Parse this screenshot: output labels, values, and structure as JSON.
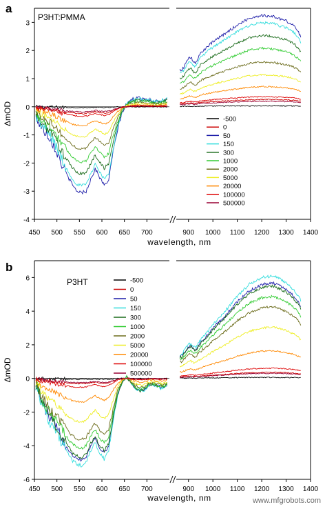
{
  "watermark": "www.mfgrobots.com",
  "chart_data": [
    {
      "panel_label": "a",
      "type": "line",
      "title": "P3HT:PMMA",
      "xlabel": "wavelength, nm",
      "ylabel": "ΔmOD",
      "xlim_left": [
        450,
        750
      ],
      "xlim_right": [
        850,
        1400
      ],
      "x_ticks_left": [
        "450",
        "500",
        "550",
        "600",
        "650",
        "700"
      ],
      "x_ticks_right": [
        "900",
        "1000",
        "1100",
        "1200",
        "1300",
        "1400"
      ],
      "ylim": [
        -4,
        3.5
      ],
      "y_ticks": [
        "-4",
        "-3",
        "-2",
        "-1",
        "0",
        "1",
        "2",
        "3"
      ],
      "legend_placement": "lower-right",
      "grid": false,
      "series": [
        {
          "name": "-500",
          "color": "#000000",
          "scale": 0.01
        },
        {
          "name": "0",
          "color": "#cc0000",
          "scale": 0.08
        },
        {
          "name": "50",
          "color": "#1c1ca8",
          "scale": 1.0
        },
        {
          "name": "150",
          "color": "#33dddd",
          "scale": 0.92
        },
        {
          "name": "300",
          "color": "#1a6b1a",
          "scale": 0.78
        },
        {
          "name": "1000",
          "color": "#33cc33",
          "scale": 0.64
        },
        {
          "name": "2000",
          "color": "#6b6b1a",
          "scale": 0.49
        },
        {
          "name": "5000",
          "color": "#eeee22",
          "scale": 0.35
        },
        {
          "name": "20000",
          "color": "#ff8800",
          "scale": 0.22
        },
        {
          "name": "100000",
          "color": "#dd0000",
          "scale": 0.11
        },
        {
          "name": "500000",
          "color": "#990033",
          "scale": 0.06
        }
      ],
      "left_profile": {
        "x": [
          455,
          465,
          475,
          485,
          495,
          505,
          515,
          525,
          535,
          545,
          555,
          565,
          575,
          585,
          595,
          605,
          615,
          625,
          635,
          645,
          655,
          665,
          675,
          685,
          695,
          705,
          715,
          725,
          735,
          745
        ],
        "y": [
          -0.4,
          -0.7,
          -0.9,
          -1.1,
          -1.4,
          -1.8,
          -2.2,
          -2.5,
          -2.8,
          -3.0,
          -3.05,
          -3.0,
          -2.6,
          -2.2,
          -2.5,
          -2.8,
          -2.6,
          -1.6,
          -0.8,
          -0.2,
          0.1,
          0.25,
          0.3,
          0.3,
          0.3,
          0.25,
          0.2,
          0.2,
          0.25,
          0.3
        ]
      },
      "right_profile": {
        "x": [
          870,
          880,
          890,
          900,
          910,
          920,
          930,
          940,
          950,
          960,
          980,
          1000,
          1050,
          1100,
          1150,
          1200,
          1250,
          1300,
          1330,
          1350,
          1360
        ],
        "y": [
          1.3,
          1.4,
          1.55,
          1.7,
          1.75,
          1.6,
          1.55,
          1.75,
          1.9,
          2.0,
          2.15,
          2.3,
          2.6,
          2.9,
          3.15,
          3.25,
          3.2,
          3.05,
          2.9,
          2.65,
          2.5
        ]
      }
    },
    {
      "panel_label": "b",
      "type": "line",
      "title": "P3HT",
      "xlabel": "wavelength, nm",
      "ylabel": "ΔmOD",
      "xlim_left": [
        450,
        750
      ],
      "xlim_right": [
        850,
        1400
      ],
      "x_ticks_left": [
        "450",
        "500",
        "550",
        "600",
        "650",
        "700"
      ],
      "x_ticks_right": [
        "900",
        "1000",
        "1100",
        "1200",
        "1300",
        "1400"
      ],
      "ylim": [
        -6,
        7
      ],
      "y_ticks": [
        "-6",
        "-4",
        "-2",
        "0",
        "2",
        "4",
        "6"
      ],
      "legend_placement": "top-left",
      "grid": false,
      "series": [
        {
          "name": "-500",
          "color": "#000000",
          "scale": 0.01
        },
        {
          "name": "0",
          "color": "#cc0000",
          "scale": 0.06
        },
        {
          "name": "50",
          "color": "#1c1ca8",
          "scale": 0.93
        },
        {
          "name": "150",
          "color": "#33dddd",
          "scale": 1.0
        },
        {
          "name": "300",
          "color": "#1a6b1a",
          "scale": 0.9
        },
        {
          "name": "1000",
          "color": "#33cc33",
          "scale": 0.8
        },
        {
          "name": "2000",
          "color": "#6b6b1a",
          "scale": 0.7
        },
        {
          "name": "5000",
          "color": "#eeee22",
          "scale": 0.5
        },
        {
          "name": "20000",
          "color": "#ff8800",
          "scale": 0.27
        },
        {
          "name": "100000",
          "color": "#dd0000",
          "scale": 0.1
        },
        {
          "name": "500000",
          "color": "#990033",
          "scale": 0.05
        }
      ],
      "left_profile": {
        "x": [
          455,
          465,
          475,
          485,
          495,
          505,
          515,
          525,
          535,
          545,
          555,
          565,
          575,
          585,
          595,
          605,
          615,
          625,
          635,
          645,
          655,
          665,
          675,
          685,
          695,
          705,
          715,
          725,
          735,
          745
        ],
        "y": [
          -0.4,
          -1.4,
          -2.0,
          -2.6,
          -3.0,
          -3.5,
          -4.0,
          -4.5,
          -4.9,
          -5.1,
          -5.2,
          -5.0,
          -4.3,
          -3.8,
          -4.4,
          -4.8,
          -4.3,
          -2.6,
          -1.0,
          -0.2,
          0.1,
          -0.3,
          -0.6,
          -0.8,
          -0.7,
          -0.4,
          -0.4,
          -0.5,
          -0.6,
          -0.4
        ]
      },
      "right_profile": {
        "x": [
          870,
          880,
          890,
          900,
          910,
          920,
          930,
          940,
          950,
          960,
          980,
          1000,
          1050,
          1100,
          1150,
          1200,
          1250,
          1300,
          1330,
          1350,
          1360
        ],
        "y": [
          1.4,
          1.6,
          1.8,
          2.0,
          2.1,
          1.9,
          1.85,
          2.1,
          2.3,
          2.5,
          2.8,
          3.2,
          4.0,
          4.9,
          5.6,
          6.0,
          6.1,
          5.7,
          5.3,
          4.9,
          4.6
        ]
      }
    }
  ]
}
